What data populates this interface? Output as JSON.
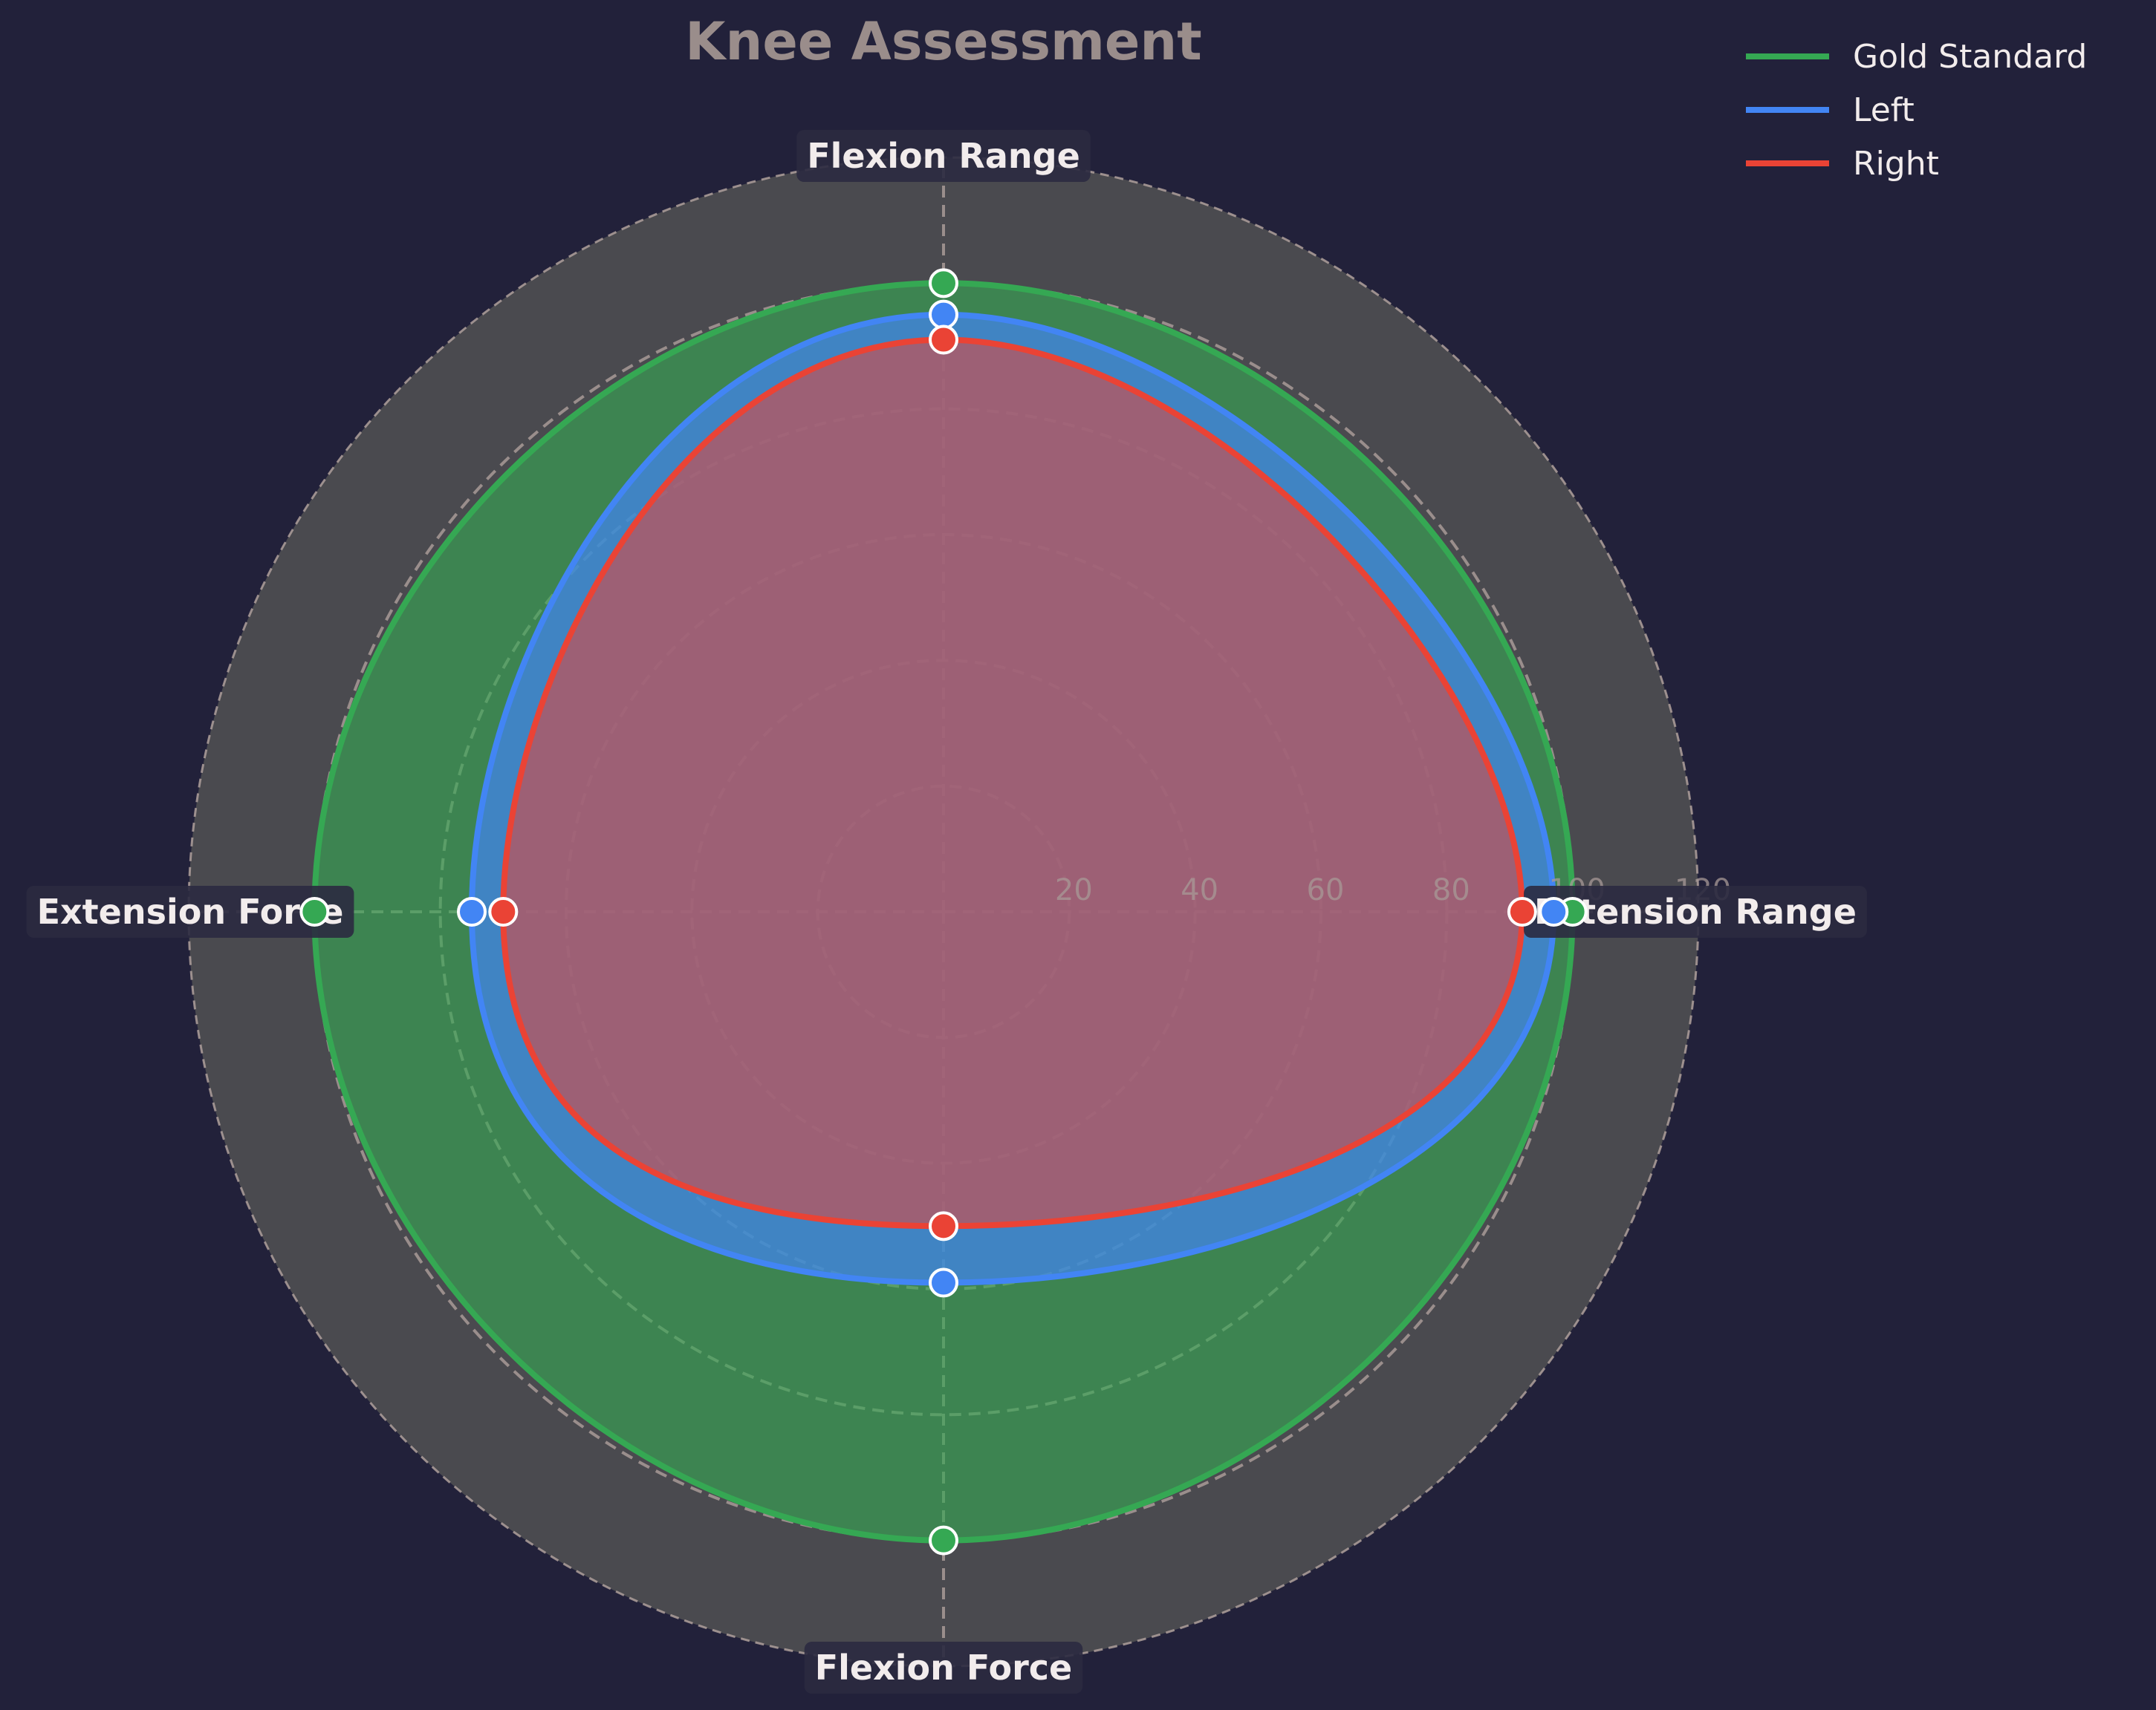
{
  "chart_data": {
    "type": "radar",
    "title": "Knee Assessment",
    "axes": [
      "Extension Range",
      "Flexion Range",
      "Extension Force",
      "Flexion Force"
    ],
    "rlim": [
      0,
      120
    ],
    "rticks": [
      "20",
      "40",
      "60",
      "80",
      "100",
      "120"
    ],
    "rtick_values": [
      20,
      40,
      60,
      80,
      100,
      120
    ],
    "grid": true,
    "legend_position": "top-right",
    "series": [
      {
        "name": "Gold Standard",
        "color": "#35a853",
        "values": [
          100,
          100,
          100,
          100
        ]
      },
      {
        "name": "Left",
        "color": "#4285f4",
        "values": [
          97,
          95,
          75,
          59
        ]
      },
      {
        "name": "Right",
        "color": "#ea4335",
        "values": [
          92,
          91,
          70,
          50
        ]
      }
    ],
    "colors": {
      "background": "#22213a",
      "plot_background": "#4a4a4f",
      "grid": "#a89a97",
      "title": "#9a8d8b",
      "label_box": "#2b2a40",
      "text": "#f2ecec"
    }
  }
}
